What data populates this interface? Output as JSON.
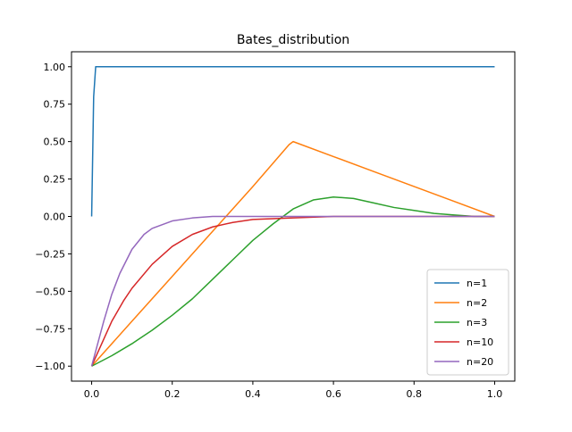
{
  "chart_data": {
    "type": "line",
    "title": "Bates_distribution",
    "xlabel": "",
    "ylabel": "",
    "xlim": [
      -0.05,
      1.05
    ],
    "ylim": [
      -1.1,
      1.1
    ],
    "x_ticks": [
      0.0,
      0.2,
      0.4,
      0.6,
      0.8,
      1.0
    ],
    "x_tick_labels": [
      "0.0",
      "0.2",
      "0.4",
      "0.6",
      "0.8",
      "1.0"
    ],
    "y_ticks": [
      -1.0,
      -0.75,
      -0.5,
      -0.25,
      0.0,
      0.25,
      0.5,
      0.75,
      1.0
    ],
    "y_tick_labels": [
      "−1.00",
      "−0.75",
      "−0.50",
      "−0.25",
      "0.00",
      "0.25",
      "0.50",
      "0.75",
      "1.00"
    ],
    "grid": false,
    "legend_position": "bottom-right",
    "series": [
      {
        "name": "n=1",
        "color": "#1f77b4",
        "x": [
          0.0,
          0.005,
          0.01,
          0.2,
          0.4,
          0.6,
          0.8,
          1.0
        ],
        "y": [
          0.0,
          0.8,
          1.0,
          1.0,
          1.0,
          1.0,
          1.0,
          1.0
        ]
      },
      {
        "name": "n=2",
        "color": "#ff7f0e",
        "x": [
          0.0,
          0.1,
          0.2,
          0.3,
          0.4,
          0.49,
          0.5,
          0.6,
          0.7,
          0.8,
          0.9,
          1.0
        ],
        "y": [
          -1.0,
          -0.7,
          -0.4,
          -0.1,
          0.2,
          0.48,
          0.5,
          0.4,
          0.3,
          0.2,
          0.1,
          0.0
        ]
      },
      {
        "name": "n=3",
        "color": "#2ca02c",
        "x": [
          0.0,
          0.05,
          0.1,
          0.15,
          0.2,
          0.25,
          0.3,
          0.35,
          0.4,
          0.45,
          0.5,
          0.55,
          0.6,
          0.65,
          0.7,
          0.75,
          0.8,
          0.85,
          0.9,
          0.95,
          1.0
        ],
        "y": [
          -1.0,
          -0.93,
          -0.85,
          -0.76,
          -0.66,
          -0.55,
          -0.42,
          -0.29,
          -0.16,
          -0.05,
          0.05,
          0.11,
          0.13,
          0.12,
          0.09,
          0.06,
          0.04,
          0.02,
          0.01,
          0.0,
          0.0
        ]
      },
      {
        "name": "n=10",
        "color": "#d62728",
        "x": [
          0.0,
          0.02,
          0.05,
          0.08,
          0.1,
          0.15,
          0.2,
          0.25,
          0.3,
          0.35,
          0.4,
          0.5,
          0.6,
          0.8,
          1.0
        ],
        "y": [
          -1.0,
          -0.88,
          -0.7,
          -0.56,
          -0.48,
          -0.32,
          -0.2,
          -0.12,
          -0.07,
          -0.04,
          -0.02,
          -0.01,
          0.0,
          0.0,
          0.0
        ]
      },
      {
        "name": "n=20",
        "color": "#9467bd",
        "x": [
          0.0,
          0.01,
          0.02,
          0.03,
          0.05,
          0.07,
          0.1,
          0.13,
          0.15,
          0.2,
          0.25,
          0.3,
          0.4,
          0.6,
          0.8,
          1.0
        ],
        "y": [
          -1.0,
          -0.9,
          -0.8,
          -0.7,
          -0.52,
          -0.38,
          -0.22,
          -0.12,
          -0.08,
          -0.03,
          -0.01,
          0.0,
          0.0,
          0.0,
          0.0,
          0.0
        ]
      }
    ]
  }
}
